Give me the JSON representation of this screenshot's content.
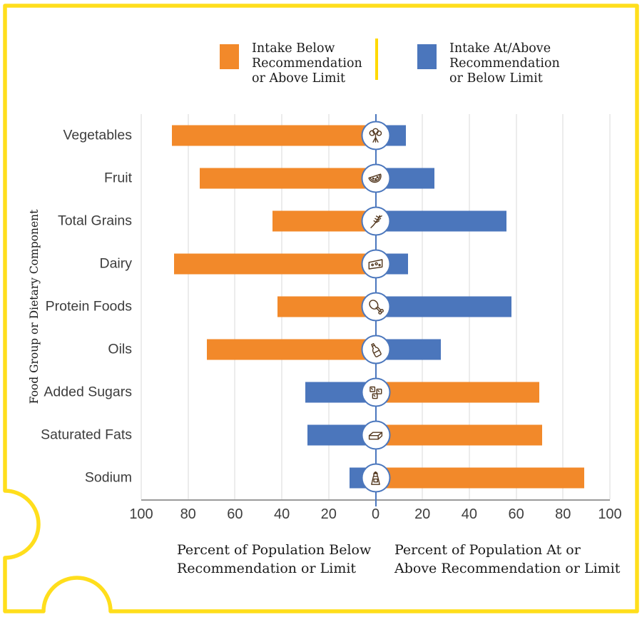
{
  "page": {
    "background": "#ffffff",
    "border_color": "#ffde1c"
  },
  "legend": {
    "divider_color": "#ffd900",
    "items": [
      {
        "swatch_color": "#f2892a",
        "lines": [
          "Intake Below",
          "Recommendation",
          "or Above Limit"
        ]
      },
      {
        "swatch_color": "#4b76bc",
        "lines": [
          "Intake At/Above",
          "Recommendation",
          "or Below Limit"
        ]
      }
    ]
  },
  "chart_data": {
    "type": "bar",
    "variant": "horizontal-diverging",
    "grid": true,
    "ylabel": "Food Group or Dietary Component",
    "x_axis": {
      "ticks": [
        100,
        80,
        60,
        40,
        20,
        0,
        20,
        40,
        60,
        80,
        100
      ],
      "units_full_width": 200
    },
    "axis_caption_left": {
      "lines": [
        "Percent of Population Below",
        "Recommendation or Limit"
      ]
    },
    "axis_caption_right": {
      "lines": [
        "Percent of Population At or",
        "Above Recommendation or Limit"
      ]
    },
    "colors": {
      "orange": "#f2892a",
      "blue": "#4b76bc"
    },
    "series_legend": {
      "orange": "Intake Below Recommendation or Above Limit",
      "blue": "Intake At/Above Recommendation or Below Limit"
    },
    "rows": [
      {
        "category": "Vegetables",
        "icon": "broccoli-icon",
        "left": {
          "color": "orange",
          "value": 87
        },
        "right": {
          "color": "blue",
          "value": 13
        }
      },
      {
        "category": "Fruit",
        "icon": "watermelon-icon",
        "left": {
          "color": "orange",
          "value": 75
        },
        "right": {
          "color": "blue",
          "value": 25
        }
      },
      {
        "category": "Total Grains",
        "icon": "wheat-icon",
        "left": {
          "color": "orange",
          "value": 44
        },
        "right": {
          "color": "blue",
          "value": 56
        }
      },
      {
        "category": "Dairy",
        "icon": "cheese-icon",
        "left": {
          "color": "orange",
          "value": 86
        },
        "right": {
          "color": "blue",
          "value": 14
        }
      },
      {
        "category": "Protein Foods",
        "icon": "drumstick-icon",
        "left": {
          "color": "orange",
          "value": 42
        },
        "right": {
          "color": "blue",
          "value": 58
        }
      },
      {
        "category": "Oils",
        "icon": "oil-bottle-icon",
        "left": {
          "color": "orange",
          "value": 72
        },
        "right": {
          "color": "blue",
          "value": 28
        }
      },
      {
        "category": "Added Sugars",
        "icon": "sugar-cubes-icon",
        "left": {
          "color": "blue",
          "value": 30
        },
        "right": {
          "color": "orange",
          "value": 70
        }
      },
      {
        "category": "Saturated Fats",
        "icon": "butter-icon",
        "left": {
          "color": "blue",
          "value": 29
        },
        "right": {
          "color": "orange",
          "value": 71
        }
      },
      {
        "category": "Sodium",
        "icon": "salt-shaker-icon",
        "left": {
          "color": "blue",
          "value": 11
        },
        "right": {
          "color": "orange",
          "value": 89
        }
      }
    ]
  }
}
